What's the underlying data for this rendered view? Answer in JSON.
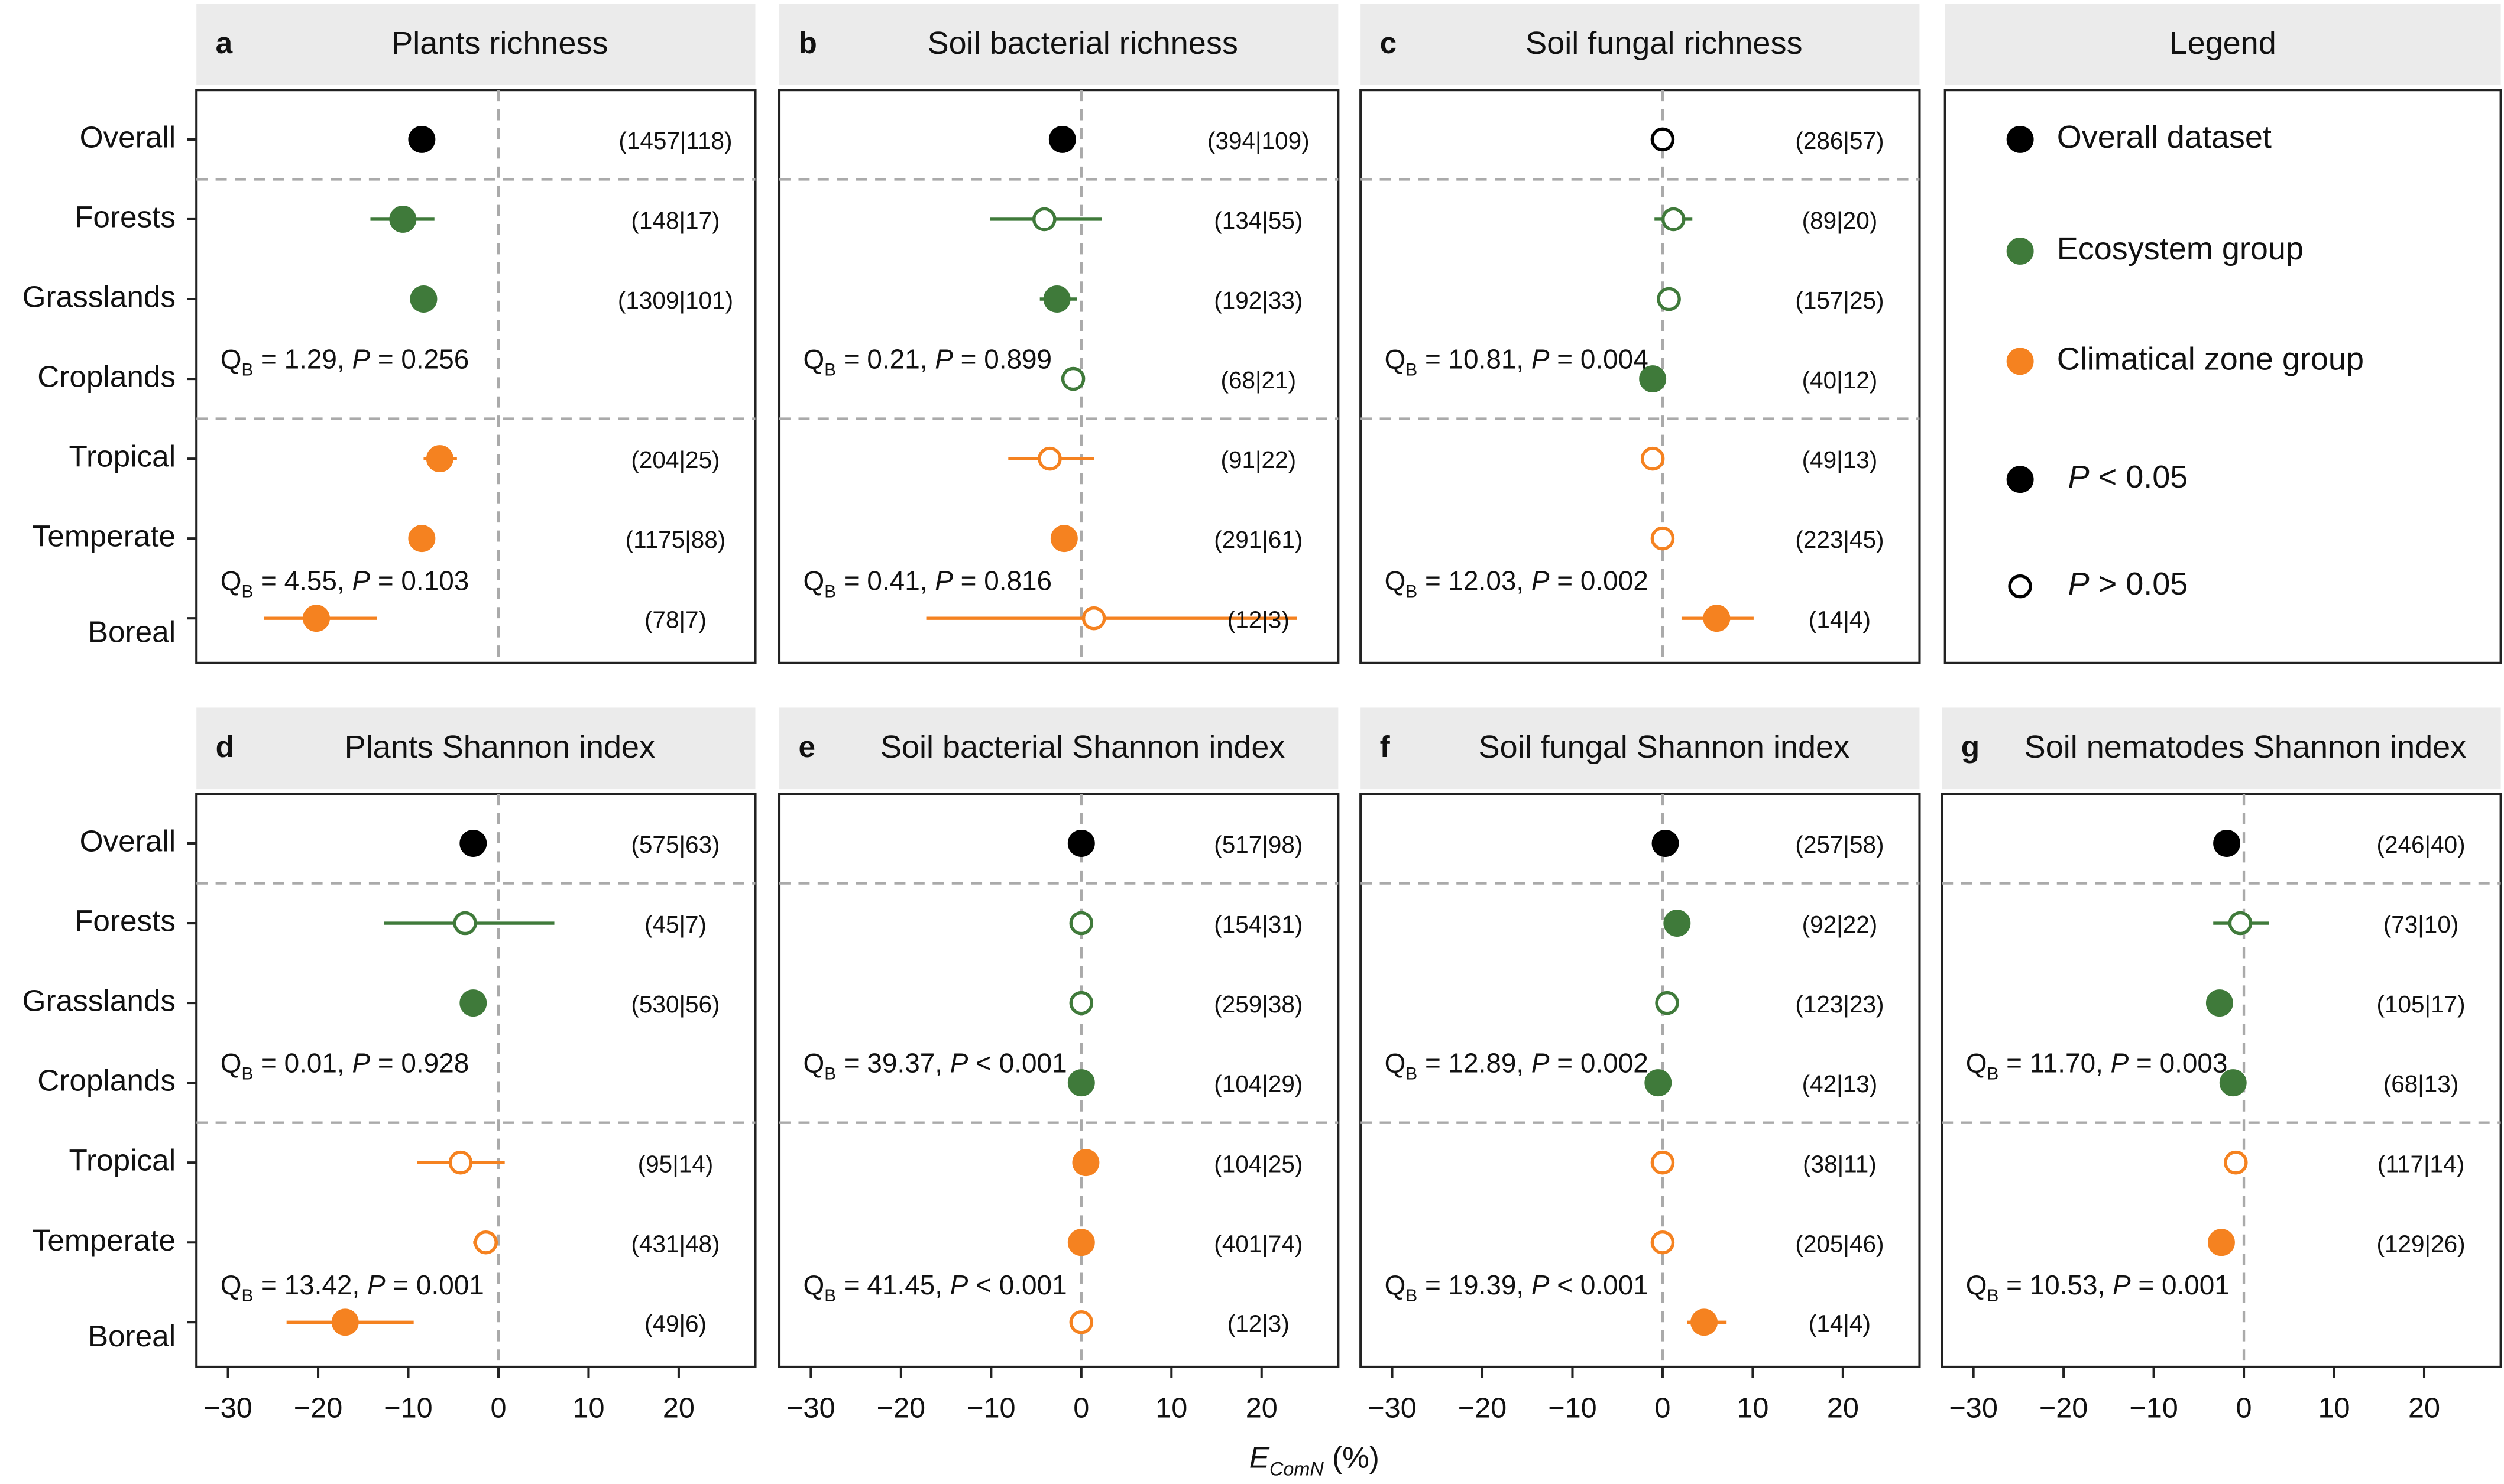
{
  "chart_data": [
    {
      "type": "forest",
      "letter": "a",
      "title": "Plants richness",
      "categories": [
        "Overall",
        "Forests",
        "Grasslands",
        "Croplands",
        "Tropical",
        "Temperate",
        "Boreal"
      ],
      "values": [
        -8.5,
        -10.6,
        -8.3,
        null,
        -6.5,
        -8.5,
        -20.2
      ],
      "ci_low": [
        null,
        -14.2,
        null,
        null,
        -8.3,
        null,
        -26.0
      ],
      "ci_high": [
        null,
        -7.1,
        null,
        null,
        -4.6,
        null,
        -13.5
      ],
      "filled": [
        true,
        true,
        true,
        null,
        true,
        true,
        true
      ],
      "colors": [
        "#000000",
        "#3f7a3a",
        "#3f7a3a",
        "#3f7a3a",
        "#f58220",
        "#f58220",
        "#f58220"
      ],
      "sample_labels": [
        "(1457|118)",
        "(148|17)",
        "(1309|101)",
        null,
        "(204|25)",
        "(1175|88)",
        "(78|7)"
      ],
      "annotations": [
        [
          "Q",
          "B",
          " = 1.29, ",
          "P",
          " = 0.256"
        ],
        [
          "Q",
          "B",
          " = 4.55, ",
          "P",
          " = 0.103"
        ]
      ],
      "xlim": [
        -33.5,
        28.5
      ],
      "ref_line": 0
    },
    {
      "type": "forest",
      "letter": "b",
      "title": "Soil bacterial richness",
      "values": [
        -2.1,
        -4.1,
        -2.7,
        -0.9,
        -3.5,
        -1.9,
        1.4
      ],
      "ci_low": [
        null,
        -10.1,
        -4.6,
        null,
        -8.1,
        null,
        -17.2
      ],
      "ci_high": [
        null,
        2.3,
        -0.5,
        null,
        1.4,
        null,
        23.9
      ],
      "filled": [
        true,
        false,
        true,
        false,
        false,
        true,
        false
      ],
      "colors": [
        "#000000",
        "#3f7a3a",
        "#3f7a3a",
        "#3f7a3a",
        "#f58220",
        "#f58220",
        "#f58220"
      ],
      "sample_labels": [
        "(394|109)",
        "(134|55)",
        "(192|33)",
        "(68|21)",
        "(91|22)",
        "(291|61)",
        "(12|3)"
      ],
      "annotations": [
        [
          "Q",
          "B",
          " = 0.21, ",
          "P",
          " = 0.899"
        ],
        [
          "Q",
          "B",
          " = 0.41, ",
          "P",
          " = 0.816"
        ]
      ],
      "xlim": [
        -33.5,
        28.5
      ],
      "ref_line": 0
    },
    {
      "type": "forest",
      "letter": "c",
      "title": "Soil fungal richness",
      "values": [
        0,
        1.2,
        0.7,
        -1.1,
        -1.1,
        0,
        6.0
      ],
      "ci_low": [
        null,
        -0.9,
        null,
        null,
        null,
        null,
        2.1
      ],
      "ci_high": [
        null,
        3.3,
        null,
        null,
        null,
        null,
        10.1
      ],
      "filled": [
        false,
        false,
        false,
        true,
        false,
        false,
        true
      ],
      "colors": [
        "#000000",
        "#3f7a3a",
        "#3f7a3a",
        "#3f7a3a",
        "#f58220",
        "#f58220",
        "#f58220"
      ],
      "sample_labels": [
        "(286|57)",
        "(89|20)",
        "(157|25)",
        "(40|12)",
        "(49|13)",
        "(223|45)",
        "(14|4)"
      ],
      "annotations": [
        [
          "Q",
          "B",
          " = 10.81, ",
          "P",
          " = 0.004"
        ],
        [
          "Q",
          "B",
          " = 12.03, ",
          "P",
          " = 0.002"
        ]
      ],
      "xlim": [
        -33.5,
        28.5
      ],
      "ref_line": 0
    },
    {
      "type": "forest",
      "letter": "d",
      "title": "Plants Shannon index",
      "categories": [
        "Overall",
        "Forests",
        "Grasslands",
        "Croplands",
        "Tropical",
        "Temperate",
        "Boreal"
      ],
      "values": [
        -2.8,
        -3.7,
        -2.8,
        null,
        -4.2,
        -1.4,
        -17.0
      ],
      "ci_low": [
        null,
        -12.7,
        null,
        null,
        -9.0,
        -2.8,
        -23.5
      ],
      "ci_high": [
        null,
        6.2,
        null,
        null,
        0.7,
        0,
        -9.4
      ],
      "filled": [
        true,
        false,
        true,
        null,
        false,
        false,
        true
      ],
      "colors": [
        "#000000",
        "#3f7a3a",
        "#3f7a3a",
        "#3f7a3a",
        "#f58220",
        "#f58220",
        "#f58220"
      ],
      "sample_labels": [
        "(575|63)",
        "(45|7)",
        "(530|56)",
        null,
        "(95|14)",
        "(431|48)",
        "(49|6)"
      ],
      "annotations": [
        [
          "Q",
          "B",
          " = 0.01, ",
          "P",
          " = 0.928"
        ],
        [
          "Q",
          "B",
          " = 13.42, ",
          "P",
          " = 0.001"
        ]
      ],
      "xlim": [
        -33.5,
        28.5
      ],
      "ref_line": 0,
      "xticks": [
        {
          "value": -30,
          "label": "−30"
        },
        {
          "value": -20,
          "label": "−20"
        },
        {
          "value": -10,
          "label": "−10"
        },
        0,
        10,
        20
      ]
    },
    {
      "type": "forest",
      "letter": "e",
      "title": "Soil bacterial Shannon index",
      "values": [
        0,
        0,
        0,
        0,
        0.5,
        0,
        0
      ],
      "ci_low": [
        null,
        null,
        null,
        null,
        null,
        null,
        null
      ],
      "ci_high": [
        null,
        null,
        null,
        null,
        null,
        null,
        null
      ],
      "filled": [
        true,
        false,
        false,
        true,
        true,
        true,
        false
      ],
      "colors": [
        "#000000",
        "#3f7a3a",
        "#3f7a3a",
        "#3f7a3a",
        "#f58220",
        "#f58220",
        "#f58220"
      ],
      "sample_labels": [
        "(517|98)",
        "(154|31)",
        "(259|38)",
        "(104|29)",
        "(104|25)",
        "(401|74)",
        "(12|3)"
      ],
      "annotations": [
        [
          "Q",
          "B",
          " = 39.37, ",
          "P",
          " < 0.001"
        ],
        [
          "Q",
          "B",
          " = 41.45, ",
          "P",
          " < 0.001"
        ]
      ],
      "xlim": [
        -33.5,
        28.5
      ],
      "ref_line": 0,
      "xticks": [
        {
          "value": -30,
          "label": "−30"
        },
        {
          "value": -20,
          "label": "−20"
        },
        {
          "value": -10,
          "label": "−10"
        },
        0,
        10,
        20
      ]
    },
    {
      "type": "forest",
      "letter": "f",
      "title": "Soil fungal Shannon index",
      "values": [
        0.3,
        1.6,
        0.5,
        -0.5,
        0,
        0,
        4.6
      ],
      "ci_low": [
        null,
        null,
        null,
        null,
        null,
        null,
        2.7
      ],
      "ci_high": [
        null,
        null,
        null,
        null,
        null,
        null,
        7.1
      ],
      "filled": [
        true,
        true,
        false,
        true,
        false,
        false,
        true
      ],
      "colors": [
        "#000000",
        "#3f7a3a",
        "#3f7a3a",
        "#3f7a3a",
        "#f58220",
        "#f58220",
        "#f58220"
      ],
      "sample_labels": [
        "(257|58)",
        "(92|22)",
        "(123|23)",
        "(42|13)",
        "(38|11)",
        "(205|46)",
        "(14|4)"
      ],
      "annotations": [
        [
          "Q",
          "B",
          " = 12.89, ",
          "P",
          " = 0.002"
        ],
        [
          "Q",
          "B",
          " = 19.39, ",
          "P",
          " < 0.001"
        ]
      ],
      "xlim": [
        -33.5,
        28.5
      ],
      "ref_line": 0,
      "xticks": [
        {
          "value": -30,
          "label": "−30"
        },
        {
          "value": -20,
          "label": "−20"
        },
        {
          "value": -10,
          "label": "−10"
        },
        0,
        10,
        20
      ]
    },
    {
      "type": "forest",
      "letter": "g",
      "title": "Soil nematodes Shannon index",
      "values": [
        -1.9,
        -0.4,
        -2.7,
        -1.2,
        -0.9,
        -2.5,
        null
      ],
      "ci_low": [
        null,
        -3.4,
        null,
        null,
        null,
        null,
        null
      ],
      "ci_high": [
        null,
        2.8,
        null,
        null,
        null,
        null,
        null
      ],
      "filled": [
        true,
        false,
        true,
        true,
        false,
        true,
        null
      ],
      "colors": [
        "#000000",
        "#3f7a3a",
        "#3f7a3a",
        "#3f7a3a",
        "#f58220",
        "#f58220",
        "#f58220"
      ],
      "sample_labels": [
        "(246|40)",
        "(73|10)",
        "(105|17)",
        "(68|13)",
        "(117|14)",
        "(129|26)",
        null
      ],
      "annotations": [
        [
          "Q",
          "B",
          " = 11.70, ",
          "P",
          " = 0.003"
        ],
        [
          "Q",
          "B",
          " = 10.53, ",
          "P",
          " = 0.001"
        ]
      ],
      "xlim": [
        -33.5,
        28.5
      ],
      "ref_line": 0,
      "xticks": [
        {
          "value": -30,
          "label": "−30"
        },
        {
          "value": -20,
          "label": "−20"
        },
        {
          "value": -10,
          "label": "−10"
        },
        0,
        10,
        20
      ]
    }
  ],
  "legend": {
    "title": "Legend",
    "entries": [
      {
        "label": [
          "Overall dataset"
        ],
        "color": "#000000",
        "filled": true
      },
      {
        "label": [
          "Ecosystem group"
        ],
        "color": "#3f7a3a",
        "filled": true
      },
      {
        "label": [
          "Climatical zone group"
        ],
        "color": "#f58220",
        "filled": true
      },
      {
        "label": [
          "P",
          " < 0.05"
        ],
        "color": "#000000",
        "filled": true
      },
      {
        "label": [
          "P",
          " > 0.05"
        ],
        "color": "#000000",
        "filled": false
      }
    ]
  },
  "x_axis_label": [
    "E",
    "ComN",
    " (%)"
  ]
}
